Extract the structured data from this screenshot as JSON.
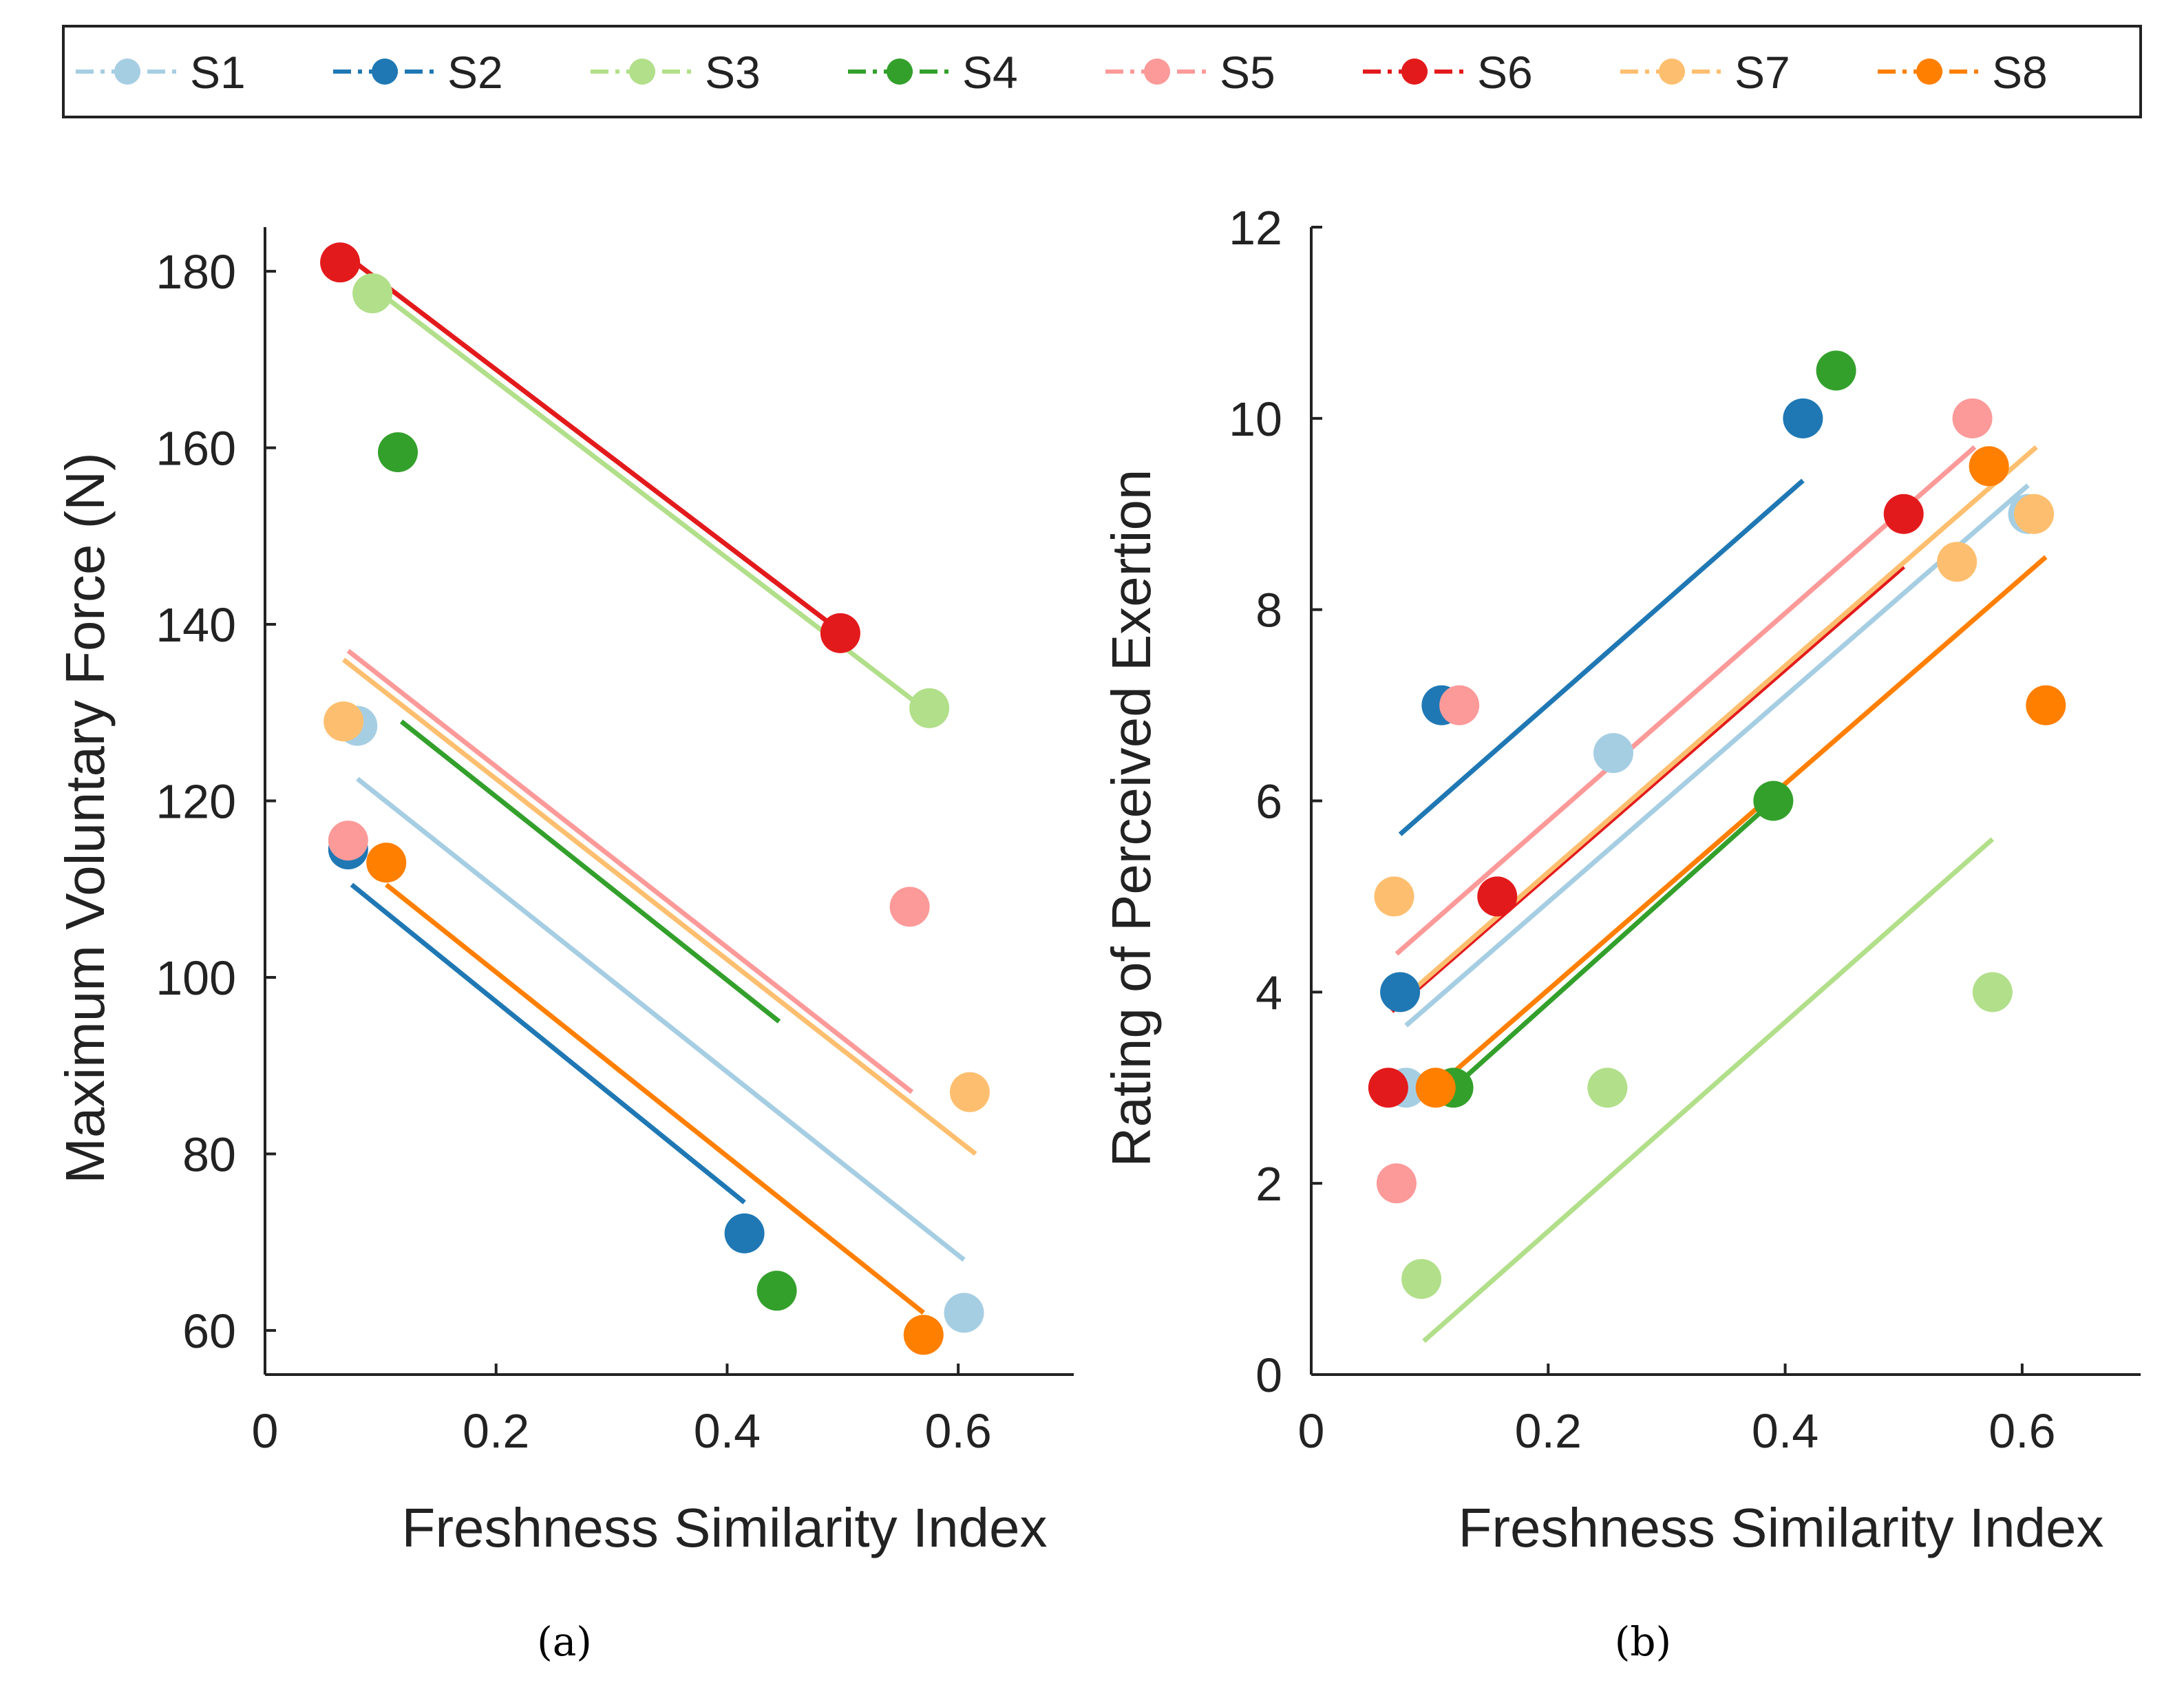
{
  "legend": {
    "position": "top",
    "entries": [
      {
        "label": "S1",
        "color": "#a6cee3"
      },
      {
        "label": "S2",
        "color": "#1f78b4"
      },
      {
        "label": "S3",
        "color": "#b2df8a"
      },
      {
        "label": "S4",
        "color": "#33a02c"
      },
      {
        "label": "S5",
        "color": "#fb9a99"
      },
      {
        "label": "S6",
        "color": "#e31a1c"
      },
      {
        "label": "S7",
        "color": "#fdbf6f"
      },
      {
        "label": "S8",
        "color": "#ff7f00"
      }
    ]
  },
  "captions": {
    "a": "(a)",
    "b": "(b)"
  },
  "chart_data": [
    {
      "type": "scatter",
      "id": "a",
      "title": "",
      "xlabel": "Freshness Similarity Index",
      "ylabel": "Maximum Voluntary Force (N)",
      "xlim": [
        0,
        0.7
      ],
      "ylim": [
        55,
        185
      ],
      "xticks": [
        0,
        0.2,
        0.4,
        0.6
      ],
      "xtick_labels": [
        "0",
        "0.2",
        "0.4",
        "0.6"
      ],
      "yticks": [
        60,
        80,
        100,
        120,
        140,
        160,
        180
      ],
      "ytick_labels": [
        "60",
        "80",
        "100",
        "120",
        "140",
        "160",
        "180"
      ],
      "series": [
        {
          "name": "S1",
          "points": [
            [
              0.08,
              128.5
            ],
            [
              0.605,
              62
            ]
          ],
          "fit": [
            [
              0.08,
              122.5
            ],
            [
              0.605,
              68
            ]
          ]
        },
        {
          "name": "S2",
          "points": [
            [
              0.072,
              114.5
            ],
            [
              0.415,
              71
            ]
          ],
          "fit": [
            [
              0.075,
              110.5
            ],
            [
              0.415,
              74.5
            ]
          ]
        },
        {
          "name": "S3",
          "points": [
            [
              0.093,
              177.5
            ],
            [
              0.575,
              130.5
            ]
          ],
          "fit": [
            [
              0.085,
              179
            ],
            [
              0.575,
              130
            ]
          ]
        },
        {
          "name": "S4",
          "points": [
            [
              0.115,
              159.5
            ],
            [
              0.443,
              64.5
            ]
          ],
          "fit": [
            [
              0.118,
              129
            ],
            [
              0.445,
              95
            ]
          ]
        },
        {
          "name": "S5",
          "points": [
            [
              0.072,
              115.5
            ],
            [
              0.558,
              108
            ]
          ],
          "fit": [
            [
              0.072,
              137
            ],
            [
              0.56,
              87
            ]
          ]
        },
        {
          "name": "S6",
          "points": [
            [
              0.065,
              181
            ],
            [
              0.498,
              139
            ]
          ],
          "fit": [
            [
              0.068,
              182
            ],
            [
              0.5,
              139
            ]
          ]
        },
        {
          "name": "S7",
          "points": [
            [
              0.068,
              129
            ],
            [
              0.61,
              87
            ]
          ],
          "fit": [
            [
              0.068,
              136
            ],
            [
              0.615,
              80
            ]
          ]
        },
        {
          "name": "S8",
          "points": [
            [
              0.105,
              113
            ],
            [
              0.57,
              59.5
            ]
          ],
          "fit": [
            [
              0.105,
              110.5
            ],
            [
              0.57,
              62
            ]
          ]
        }
      ]
    },
    {
      "type": "scatter",
      "id": "b",
      "title": "",
      "xlabel": "Freshness Similarity Index",
      "ylabel": "Rating of Perceived Exertion",
      "xlim": [
        0,
        0.7
      ],
      "ylim": [
        0,
        12
      ],
      "xticks": [
        0,
        0.2,
        0.4,
        0.6
      ],
      "xtick_labels": [
        "0",
        "0.2",
        "0.4",
        "0.6"
      ],
      "yticks": [
        0,
        2,
        4,
        6,
        8,
        10,
        12
      ],
      "ytick_labels": [
        "0",
        "2",
        "4",
        "6",
        "8",
        "10",
        "12"
      ],
      "series": [
        {
          "name": "S1",
          "points": [
            [
              0.08,
              3
            ],
            [
              0.255,
              6.5
            ],
            [
              0.605,
              9
            ]
          ],
          "fit": [
            [
              0.08,
              3.65
            ],
            [
              0.605,
              9.3
            ]
          ]
        },
        {
          "name": "S2",
          "points": [
            [
              0.075,
              4
            ],
            [
              0.11,
              7
            ],
            [
              0.415,
              10
            ]
          ],
          "fit": [
            [
              0.075,
              5.65
            ],
            [
              0.415,
              9.35
            ]
          ]
        },
        {
          "name": "S3",
          "points": [
            [
              0.093,
              1
            ],
            [
              0.25,
              3
            ],
            [
              0.575,
              4
            ]
          ],
          "fit": [
            [
              0.095,
              0.35
            ],
            [
              0.575,
              5.6
            ]
          ]
        },
        {
          "name": "S4",
          "points": [
            [
              0.12,
              3
            ],
            [
              0.39,
              6
            ],
            [
              0.443,
              10.5
            ]
          ],
          "fit": [
            [
              0.12,
              3.0
            ],
            [
              0.39,
              6.0
            ]
          ]
        },
        {
          "name": "S5",
          "points": [
            [
              0.072,
              2
            ],
            [
              0.125,
              7
            ],
            [
              0.558,
              10
            ]
          ],
          "fit": [
            [
              0.072,
              4.4
            ],
            [
              0.56,
              9.7
            ]
          ]
        },
        {
          "name": "S6",
          "points": [
            [
              0.065,
              3
            ],
            [
              0.157,
              5
            ],
            [
              0.5,
              9
            ]
          ],
          "fit": [
            [
              0.068,
              3.8
            ],
            [
              0.5,
              8.45
            ]
          ]
        },
        {
          "name": "S7",
          "points": [
            [
              0.07,
              5
            ],
            [
              0.545,
              8.5
            ],
            [
              0.61,
              9
            ]
          ],
          "fit": [
            [
              0.07,
              3.85
            ],
            [
              0.612,
              9.7
            ]
          ]
        },
        {
          "name": "S8",
          "points": [
            [
              0.105,
              3
            ],
            [
              0.572,
              9.5
            ],
            [
              0.62,
              7
            ]
          ],
          "fit": [
            [
              0.105,
              3.0
            ],
            [
              0.62,
              8.55
            ]
          ]
        }
      ]
    }
  ]
}
